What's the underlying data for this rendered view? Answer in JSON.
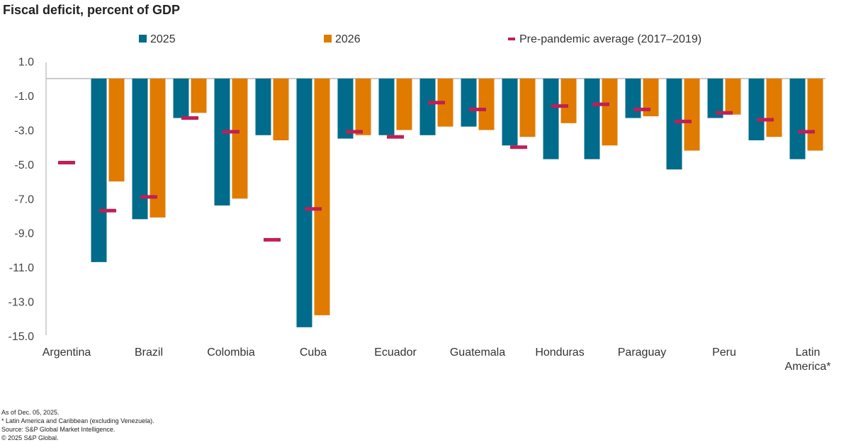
{
  "chart_data": {
    "type": "bar",
    "title": "Fiscal deficit, percent of GDP",
    "categories": [
      "Argentina",
      "",
      "Brazil",
      "",
      "Colombia",
      "",
      "Cuba",
      "",
      "Ecuador",
      "",
      "Guatemala",
      "",
      "Honduras",
      "",
      "Paraguay",
      "",
      "Peru",
      "",
      "Latin America*"
    ],
    "series": [
      {
        "name": "2025",
        "type": "bar",
        "color": "#006b8a",
        "values": [
          null,
          -10.7,
          -8.2,
          -2.3,
          -7.4,
          -3.3,
          -14.5,
          -3.5,
          -3.3,
          -3.3,
          -2.8,
          -3.9,
          -4.7,
          -4.7,
          -2.3,
          -5.3,
          -2.3,
          -3.6,
          -4.7
        ]
      },
      {
        "name": "2026",
        "type": "bar",
        "color": "#e07b00",
        "values": [
          null,
          -6.0,
          -8.1,
          -2.0,
          -7.0,
          -3.6,
          -13.8,
          -3.3,
          -3.0,
          -2.8,
          -3.0,
          -3.4,
          -2.6,
          -3.9,
          -2.2,
          -4.2,
          -2.1,
          -3.4,
          -4.2
        ]
      },
      {
        "name": "Pre-pandemic average (2017–2019)",
        "type": "marker",
        "color": "#c01f55",
        "values": [
          -4.9,
          -7.7,
          -6.9,
          -2.3,
          -3.1,
          -9.4,
          -7.6,
          -3.1,
          -3.4,
          -1.4,
          -1.8,
          -4.0,
          -1.6,
          -1.5,
          -1.8,
          -2.5,
          -2.0,
          -2.4,
          -3.1
        ]
      }
    ],
    "yticks": [
      "1.0",
      "-1.0",
      "-3.0",
      "-5.0",
      "-7.0",
      "-9.0",
      "-11.0",
      "-13.0",
      "-15.0"
    ],
    "ylim": [
      -15,
      1
    ],
    "grid": false,
    "legend": "top"
  },
  "footnotes": [
    "As of Dec. 05, 2025.",
    "* Latin America and Caribbean (excluding Venezuela).",
    "Source: S&P Global Market Intelligence.",
    "© 2025 S&P Global."
  ]
}
